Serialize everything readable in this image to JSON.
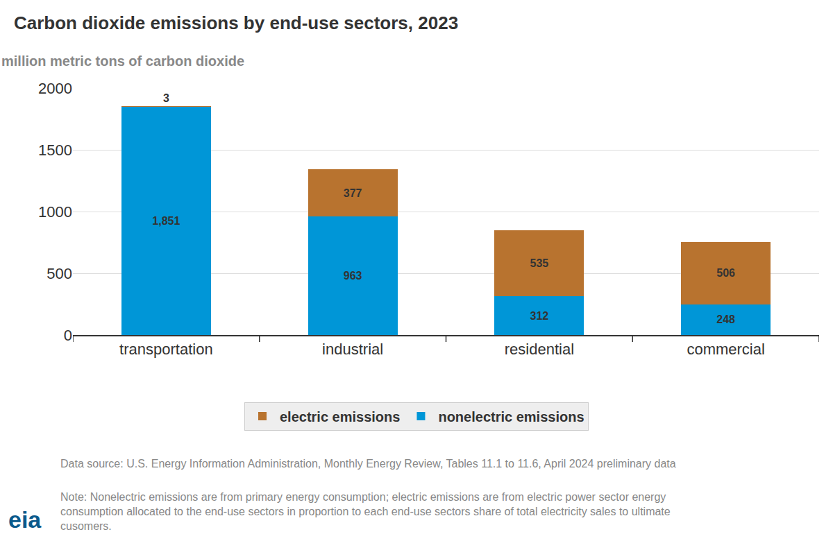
{
  "chart_data": {
    "type": "bar",
    "title": "Carbon dioxide emissions by end-use sectors, 2023",
    "ylabel": "million metric tons of carbon dioxide",
    "categories": [
      "transportation",
      "industrial",
      "residential",
      "commercial"
    ],
    "series": [
      {
        "name": "nonelectric emissions",
        "color": "#0096d7",
        "values": [
          1851,
          963,
          312,
          248
        ],
        "value_labels": [
          "1,851",
          "963",
          "312",
          "248"
        ]
      },
      {
        "name": "electric emissions",
        "color": "#b8732f",
        "values": [
          3,
          377,
          535,
          506
        ]
      }
    ],
    "ylim": [
      0,
      2000
    ],
    "yticks": [
      0,
      500,
      1000,
      1500,
      2000
    ],
    "grid": true,
    "stacked": true,
    "data_labels": true,
    "legend": "bottom",
    "source": "Data source: U.S. Energy Information Administration, Monthly Energy Review, Tables 11.1 to 11.6, April 2024 preliminary data",
    "note": [
      "Note: Nonelectric emissions are from primary energy consumption; electric emissions are from electric power sector energy",
      "consumption allocated to the end-use sectors in proportion to each end-use sectors share of total electricity sales to ultimate",
      "cusomers."
    ],
    "logo": "eia"
  }
}
